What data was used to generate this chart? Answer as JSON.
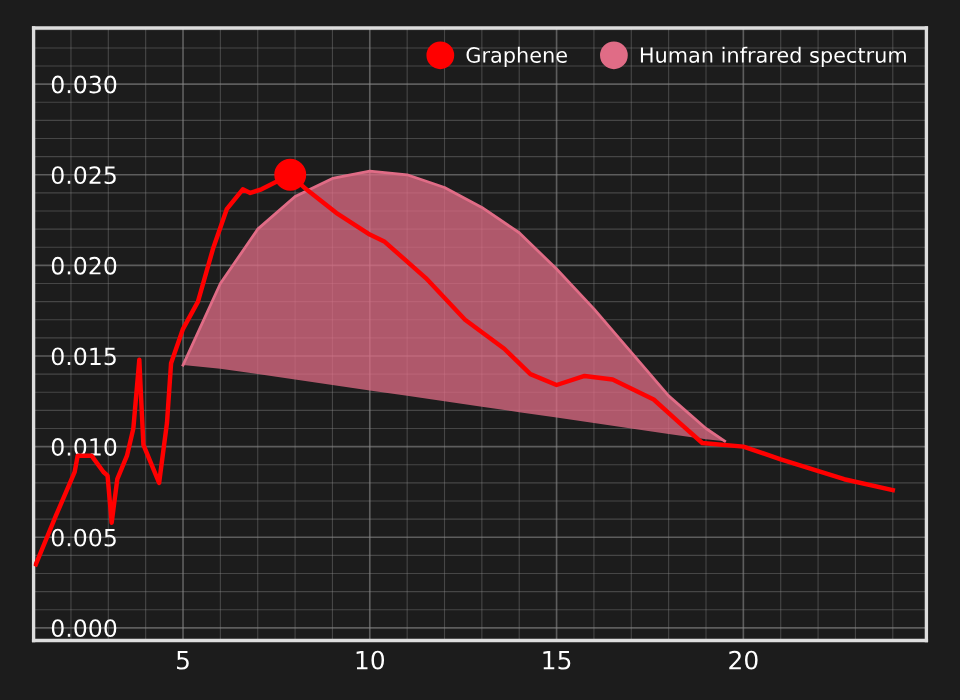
{
  "chart_data": {
    "type": "line",
    "xlim": [
      1.0,
      24.9
    ],
    "ylim": [
      -0.0007,
      0.0331
    ],
    "xticks": [
      5,
      10,
      15,
      20
    ],
    "yticks": [
      {
        "value": 0,
        "label": "0.000"
      },
      {
        "value": 0.005,
        "label": "0.005"
      },
      {
        "value": 0.01,
        "label": "0.010"
      },
      {
        "value": 0.015,
        "label": "0.015"
      },
      {
        "value": 0.02,
        "label": "0.020"
      },
      {
        "value": 0.025,
        "label": "0.025"
      },
      {
        "value": 0.03,
        "label": "0.030"
      }
    ],
    "grid": true,
    "legend": "top right",
    "marker": "none",
    "series": [
      {
        "name": "Human infrared spectrum",
        "color": "#e06c86",
        "x": [
          5,
          6,
          7,
          8,
          9,
          10,
          11,
          12,
          13,
          14,
          15,
          16,
          17,
          18,
          19,
          19.5
        ],
        "values": [
          0.0145,
          0.019,
          0.022,
          0.0238,
          0.0248,
          0.0252,
          0.025,
          0.0243,
          0.0232,
          0.0218,
          0.0198,
          0.0176,
          0.0152,
          0.0128,
          0.011,
          0.0103
        ],
        "lower": [
          0.0145,
          0.0143,
          0.014,
          0.0137,
          0.0134,
          0.0131,
          0.0128,
          0.0125,
          0.0122,
          0.0119,
          0.0116,
          0.0113,
          0.011,
          0.0107,
          0.0104,
          0.0103
        ],
        "upper": [
          0.0145,
          0.019,
          0.022,
          0.0238,
          0.0248,
          0.0252,
          0.025,
          0.0243,
          0.0232,
          0.0218,
          0.0198,
          0.0176,
          0.0152,
          0.0128,
          0.011,
          0.0103
        ]
      },
      {
        "name": "Graphene",
        "color": "#ff0000",
        "x": [
          1.06,
          1.6,
          2.1,
          2.18,
          2.55,
          2.87,
          2.98,
          3.09,
          3.24,
          3.5,
          3.67,
          3.83,
          3.88,
          3.94,
          4.36,
          4.57,
          4.68,
          5.0,
          5.4,
          5.8,
          6.17,
          6.6,
          6.8,
          7.1,
          7.87,
          8.3,
          9.1,
          10,
          10.4,
          11.5,
          12.55,
          13.6,
          14.3,
          15.0,
          15.75,
          16.5,
          17.6,
          18.3,
          18.9,
          20,
          21,
          22.7,
          24
        ],
        "values": [
          0.0035,
          0.0062,
          0.0086,
          0.0095,
          0.0095,
          0.0086,
          0.0084,
          0.0058,
          0.0082,
          0.0095,
          0.011,
          0.0148,
          0.0126,
          0.0101,
          0.008,
          0.0113,
          0.0146,
          0.0165,
          0.018,
          0.0209,
          0.0231,
          0.0242,
          0.024,
          0.0242,
          0.025,
          0.0242,
          0.0229,
          0.0217,
          0.0213,
          0.0193,
          0.017,
          0.0154,
          0.014,
          0.0134,
          0.0139,
          0.0137,
          0.0126,
          0.0113,
          0.0102,
          0.01,
          0.0093,
          0.0082,
          0.0076
        ]
      },
      {
        "type": "scatter",
        "marker": "circle",
        "color": "#ff0000",
        "x": [
          7.87
        ],
        "values": [
          0.025
        ]
      }
    ]
  }
}
